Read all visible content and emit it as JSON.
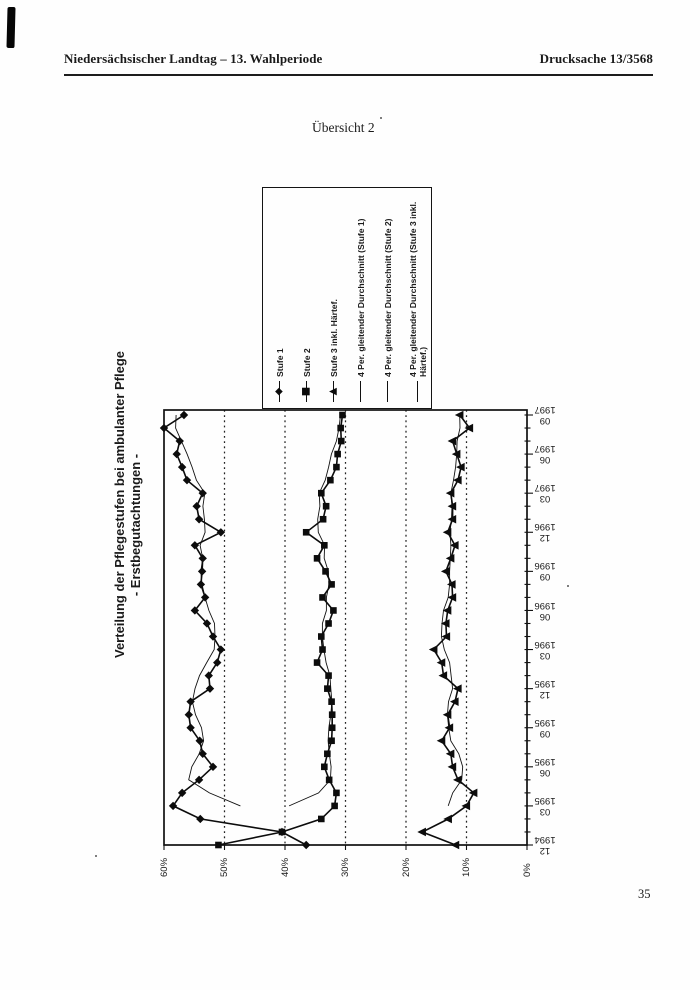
{
  "page": {
    "header_left": "Niedersächsischer Landtag – 13. Wahlperiode",
    "header_right": "Drucksache 13/3568",
    "caption": "Übersicht 2",
    "page_number": "35"
  },
  "colors": {
    "ink": "#1a1a1a",
    "paper": "#fefefe"
  },
  "chart_data": {
    "type": "line",
    "orientation": "rotated-90-counterclockwise-on-page",
    "title_line1": "Verteilung der Pflegestufen bei ambulanter Pflege",
    "title_line2": "- Erstbegutachtungen -",
    "grid": "dashed gridlines at 10,20,30,40,50 percent",
    "legend_position": "top-of-rotated-chart",
    "value_axis": {
      "unit": "%",
      "min": 0,
      "max": 60,
      "tick_step": 10,
      "tick_labels": [
        "0%",
        "10%",
        "20%",
        "30%",
        "40%",
        "50%",
        "60%"
      ]
    },
    "time_axis": {
      "quarter_labels": [
        {
          "year": "1994",
          "month": "12"
        },
        {
          "year": "1995",
          "month": "03"
        },
        {
          "year": "1995",
          "month": "06"
        },
        {
          "year": "1995",
          "month": "09"
        },
        {
          "year": "1995",
          "month": "12"
        },
        {
          "year": "1996",
          "month": "03"
        },
        {
          "year": "1996",
          "month": "06"
        },
        {
          "year": "1996",
          "month": "09"
        },
        {
          "year": "1996",
          "month": "12"
        },
        {
          "year": "1997",
          "month": "03"
        },
        {
          "year": "1997",
          "month": "06"
        },
        {
          "year": "1997",
          "month": "09"
        }
      ]
    },
    "months": [
      "1994-12",
      "1995-01",
      "1995-02",
      "1995-03",
      "1995-04",
      "1995-05",
      "1995-06",
      "1995-07",
      "1995-08",
      "1995-09",
      "1995-10",
      "1995-11",
      "1995-12",
      "1996-01",
      "1996-02",
      "1996-03",
      "1996-04",
      "1996-05",
      "1996-06",
      "1996-07",
      "1996-08",
      "1996-09",
      "1996-10",
      "1996-11",
      "1996-12",
      "1997-01",
      "1997-02",
      "1997-03",
      "1997-04",
      "1997-05",
      "1997-06",
      "1997-07",
      "1997-08",
      "1997-09"
    ],
    "series": [
      {
        "name": "Stufe 1",
        "marker": "diamond",
        "values": [
          36.5,
          40.5,
          54.0,
          58.5,
          57.0,
          54.2,
          51.9,
          53.6,
          54.1,
          55.6,
          55.9,
          55.6,
          52.4,
          52.6,
          51.2,
          50.6,
          51.9,
          52.9,
          54.9,
          53.2,
          53.9,
          53.7,
          53.6,
          54.9,
          50.6,
          54.2,
          54.6,
          53.6,
          56.2,
          57.0,
          57.9,
          57.4,
          60.0,
          56.7
        ]
      },
      {
        "name": "Stufe 2",
        "marker": "square",
        "values": [
          51.0,
          40.5,
          34.0,
          31.8,
          31.5,
          32.7,
          33.5,
          33.0,
          32.3,
          32.2,
          32.2,
          32.3,
          33.0,
          32.8,
          34.7,
          33.8,
          34.0,
          32.8,
          32.0,
          33.8,
          32.3,
          33.3,
          34.7,
          33.5,
          36.5,
          33.7,
          33.2,
          34.0,
          32.5,
          31.5,
          31.3,
          30.7,
          30.8,
          30.5
        ]
      },
      {
        "name": "Stufe 3 inkl. Härtef.",
        "marker": "triangle",
        "values": [
          11.8,
          17.3,
          13.0,
          10.0,
          8.8,
          11.4,
          12.3,
          12.6,
          14.1,
          12.8,
          13.1,
          11.9,
          11.4,
          13.8,
          14.1,
          15.4,
          13.3,
          13.4,
          13.1,
          12.3,
          12.4,
          13.4,
          12.6,
          11.9,
          13.1,
          12.3,
          12.3,
          12.6,
          11.4,
          10.9,
          11.6,
          12.3,
          9.5,
          11.1
        ]
      }
    ],
    "moving_average": {
      "period": 4,
      "legend_labels": [
        "4 Per. gleitender Durchschnitt (Stufe 1)",
        "4 Per. gleitender Durchschnitt (Stufe 2)",
        "4 Per. gleitender Durchschnitt (Stufe 3 inkl. Härtef.)"
      ]
    }
  }
}
